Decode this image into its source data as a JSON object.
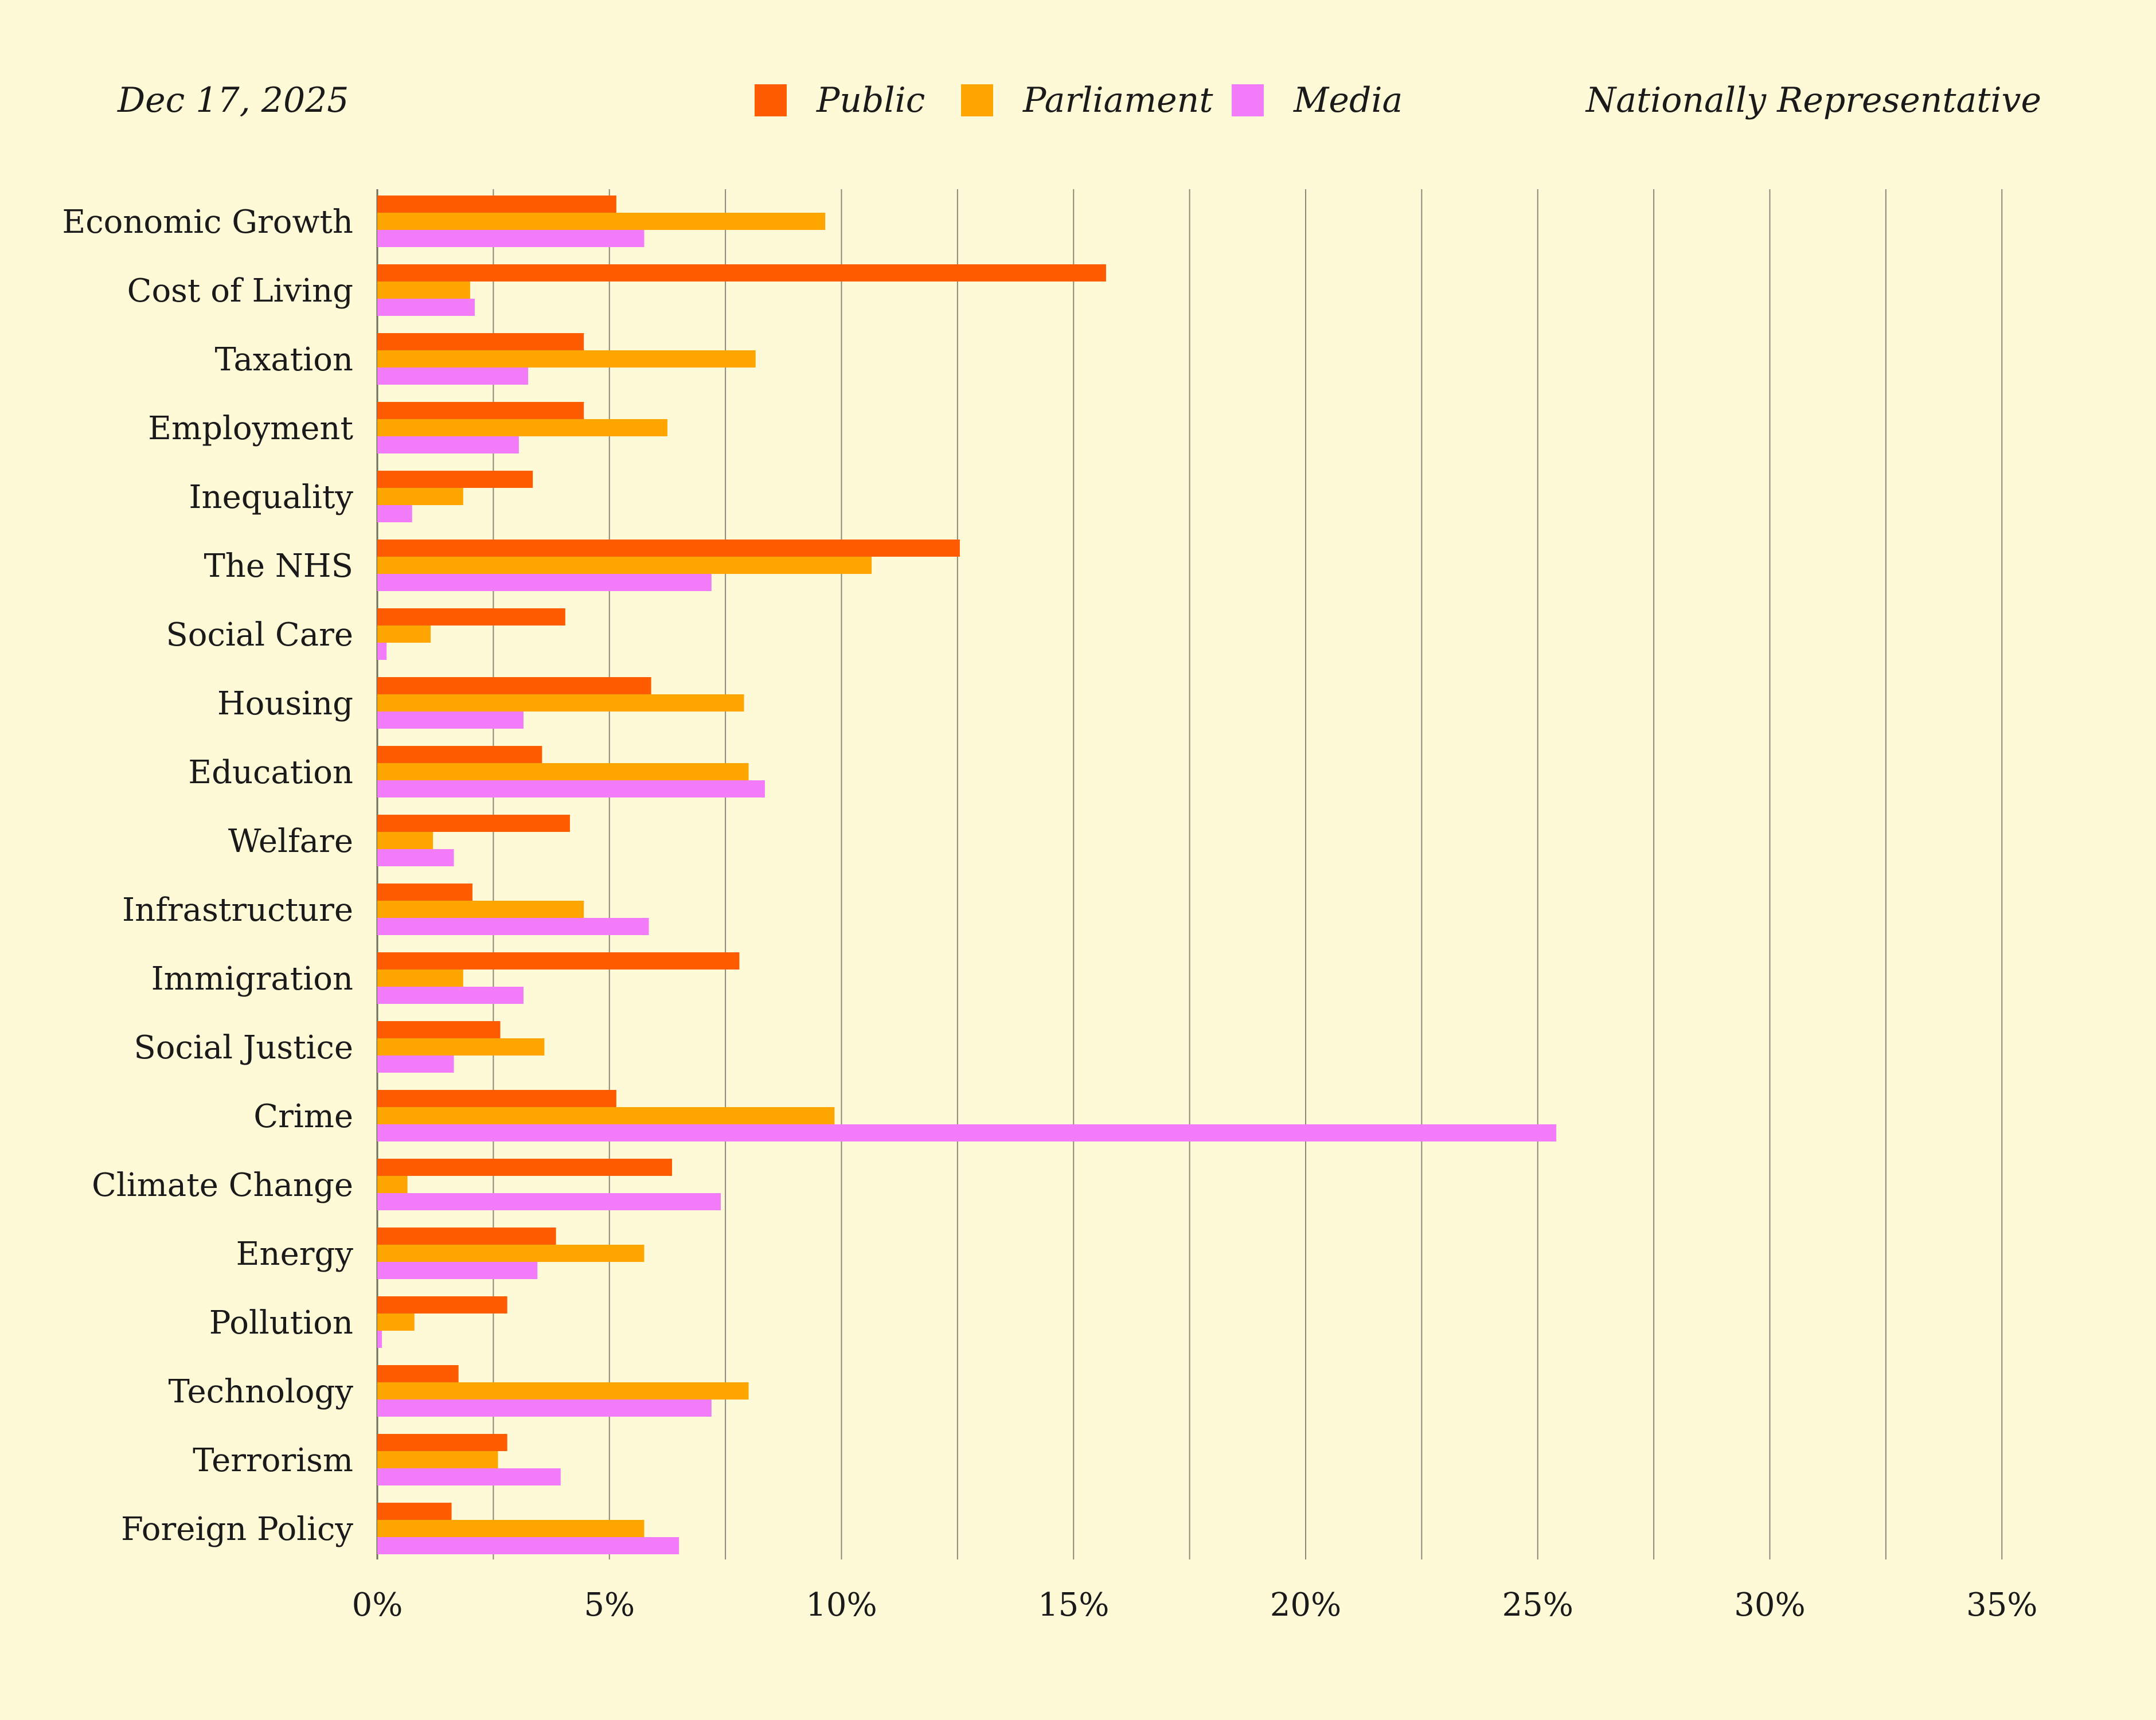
{
  "header": {
    "date": "Dec 17, 2025",
    "subtitle": "Nationally Representative"
  },
  "colors": {
    "background": "#fef9d6",
    "public": "#ff5b00",
    "parliament": "#ffa500",
    "media": "#f27cf9",
    "gridline": "#8a8a78"
  },
  "chart_data": {
    "type": "bar",
    "orientation": "horizontal",
    "title": "",
    "xlabel": "",
    "ylabel": "",
    "xlim": [
      0,
      35
    ],
    "x_ticks": [
      "0%",
      "5%",
      "10%",
      "15%",
      "20%",
      "25%",
      "30%",
      "35%"
    ],
    "grid": "vertical",
    "legend_position": "top-center",
    "categories": [
      "Economic Growth",
      "Cost of Living",
      "Taxation",
      "Employment",
      "Inequality",
      "The NHS",
      "Social Care",
      "Housing",
      "Education",
      "Welfare",
      "Infrastructure",
      "Immigration",
      "Social Justice",
      "Crime",
      "Climate Change",
      "Energy",
      "Pollution",
      "Technology",
      "Terrorism",
      "Foreign Policy"
    ],
    "series": [
      {
        "name": "Public",
        "color": "#ff5b00",
        "values": [
          5.15,
          15.7,
          4.45,
          4.45,
          3.35,
          12.55,
          4.05,
          5.9,
          3.55,
          4.15,
          2.05,
          7.8,
          2.65,
          5.15,
          6.35,
          3.85,
          2.8,
          1.75,
          2.8,
          1.6
        ]
      },
      {
        "name": "Parliament",
        "color": "#ffa500",
        "values": [
          9.65,
          2.0,
          8.15,
          6.25,
          1.85,
          10.65,
          1.15,
          7.9,
          8.0,
          1.2,
          4.45,
          1.85,
          3.6,
          9.85,
          0.65,
          5.75,
          0.8,
          8.0,
          2.6,
          5.75
        ]
      },
      {
        "name": "Media",
        "color": "#f27cf9",
        "values": [
          5.75,
          2.1,
          3.25,
          3.05,
          0.75,
          7.2,
          0.2,
          3.15,
          8.35,
          1.65,
          5.85,
          3.15,
          1.65,
          25.4,
          7.4,
          3.45,
          0.1,
          7.2,
          3.95,
          6.5
        ]
      }
    ]
  }
}
